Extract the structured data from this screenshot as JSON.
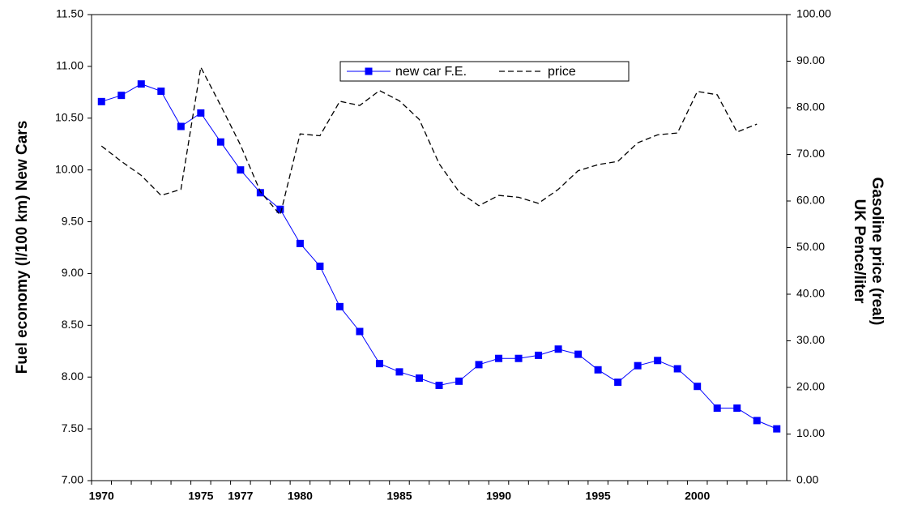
{
  "chart_data": {
    "type": "line",
    "y_label": "Fuel economy (l/100 km) New Cars",
    "y2_label_lines": [
      "Gasoline price (real)",
      "UK Pence/liter"
    ],
    "categories": [
      "1970",
      null,
      null,
      null,
      null,
      "1975",
      null,
      "1977",
      null,
      null,
      "1980",
      null,
      null,
      null,
      null,
      "1985",
      null,
      null,
      null,
      null,
      "1990",
      null,
      null,
      null,
      null,
      "1995",
      null,
      null,
      null,
      null,
      "2000",
      null,
      null,
      null,
      null
    ],
    "series": [
      {
        "name": "new car F.E.",
        "color": "#0000ff",
        "dash": false,
        "marker": "square",
        "values": [
          10.66,
          10.72,
          10.83,
          10.76,
          10.42,
          10.55,
          10.27,
          10.0,
          9.78,
          9.62,
          9.29,
          9.07,
          8.68,
          8.44,
          8.13,
          8.05,
          7.99,
          7.92,
          7.96,
          8.12,
          8.18,
          8.18,
          8.21,
          8.27,
          8.22,
          8.07,
          7.95,
          8.11,
          8.16,
          8.08,
          7.91,
          7.7,
          7.7,
          7.58,
          7.5
        ]
      },
      {
        "name": "price",
        "color": "#000000",
        "dash": true,
        "axis": "y2",
        "values": [
          71.8,
          68.5,
          65.5,
          61.2,
          62.5,
          88.7,
          80.5,
          72,
          62,
          57,
          74.4,
          74,
          81.4,
          80.5,
          83.7,
          81.5,
          77.5,
          68,
          62,
          59,
          61.2,
          60.8,
          59.5,
          62.5,
          66.5,
          67.8,
          68.5,
          72.5,
          74.2,
          74.6,
          83.5,
          82.8,
          74.8,
          76.5,
          null
        ]
      }
    ],
    "ylim": [
      7,
      11.5
    ],
    "yticks": [
      {
        "value": 7,
        "label": "7.00"
      },
      {
        "value": 7.5,
        "label": "7.50"
      },
      {
        "value": 8,
        "label": "8.00"
      },
      {
        "value": 8.5,
        "label": "8.50"
      },
      {
        "value": 9,
        "label": "9.00"
      },
      {
        "value": 9.5,
        "label": "9.50"
      },
      {
        "value": 10,
        "label": "10.00"
      },
      {
        "value": 10.5,
        "label": "10.50"
      },
      {
        "value": 11,
        "label": "11.00"
      },
      {
        "value": 11.5,
        "label": "11.50"
      }
    ],
    "y2lim": [
      0,
      100
    ],
    "y2ticks": [
      {
        "value": 0,
        "label": "0.00"
      },
      {
        "value": 10,
        "label": "10.00"
      },
      {
        "value": 20,
        "label": "20.00"
      },
      {
        "value": 30,
        "label": "30.00"
      },
      {
        "value": 40,
        "label": "40.00"
      },
      {
        "value": 50,
        "label": "50.00"
      },
      {
        "value": 60,
        "label": "60.00"
      },
      {
        "value": 70,
        "label": "70.00"
      },
      {
        "value": 80,
        "label": "80.00"
      },
      {
        "value": 90,
        "label": "90.00"
      },
      {
        "value": 100,
        "label": "100.00"
      }
    ],
    "grid": false
  }
}
